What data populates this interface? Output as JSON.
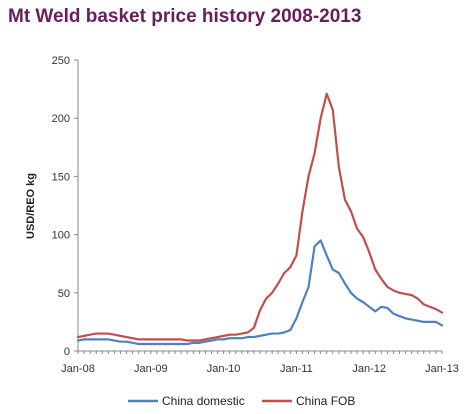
{
  "chart_data": {
    "type": "line",
    "title": "Mt Weld basket price history 2008-2013",
    "ylabel": "USD/REO kg",
    "xlabel": "",
    "ylim": [
      0,
      250
    ],
    "yticks": [
      0,
      50,
      100,
      150,
      200,
      250
    ],
    "xlim": [
      "2008-01",
      "2013-01"
    ],
    "xtick_labels": [
      "Jan-08",
      "Jan-09",
      "Jan-10",
      "Jan-11",
      "Jan-12",
      "Jan-13"
    ],
    "x": [
      "2008-01",
      "2008-02",
      "2008-03",
      "2008-04",
      "2008-05",
      "2008-06",
      "2008-07",
      "2008-08",
      "2008-09",
      "2008-10",
      "2008-11",
      "2008-12",
      "2009-01",
      "2009-02",
      "2009-03",
      "2009-04",
      "2009-05",
      "2009-06",
      "2009-07",
      "2009-08",
      "2009-09",
      "2009-10",
      "2009-11",
      "2009-12",
      "2010-01",
      "2010-02",
      "2010-03",
      "2010-04",
      "2010-05",
      "2010-06",
      "2010-07",
      "2010-08",
      "2010-09",
      "2010-10",
      "2010-11",
      "2010-12",
      "2011-01",
      "2011-02",
      "2011-03",
      "2011-04",
      "2011-05",
      "2011-06",
      "2011-07",
      "2011-08",
      "2011-09",
      "2011-10",
      "2011-11",
      "2011-12",
      "2012-01",
      "2012-02",
      "2012-03",
      "2012-04",
      "2012-05",
      "2012-06",
      "2012-07",
      "2012-08",
      "2012-09",
      "2012-10",
      "2012-11",
      "2012-12",
      "2013-01"
    ],
    "series": [
      {
        "name": "China domestic",
        "color": "#4f81bd",
        "values": [
          9,
          10,
          10,
          10,
          10,
          10,
          9,
          8,
          8,
          7,
          6,
          6,
          6,
          6,
          6,
          6,
          6,
          6,
          6,
          7,
          7,
          8,
          9,
          10,
          10,
          11,
          11,
          11,
          12,
          12,
          13,
          14,
          15,
          15,
          16,
          18,
          28,
          42,
          55,
          90,
          95,
          82,
          70,
          67,
          58,
          50,
          45,
          42,
          38,
          34,
          38,
          37,
          32,
          30,
          28,
          27,
          26,
          25,
          25,
          25,
          22
        ]
      },
      {
        "name": "China FOB",
        "color": "#c0504d",
        "values": [
          12,
          13,
          14,
          15,
          15,
          15,
          14,
          13,
          12,
          11,
          10,
          10,
          10,
          10,
          10,
          10,
          10,
          10,
          9,
          9,
          9,
          10,
          11,
          12,
          13,
          14,
          14,
          15,
          16,
          20,
          35,
          45,
          50,
          58,
          67,
          72,
          82,
          120,
          150,
          170,
          200,
          221,
          207,
          158,
          130,
          120,
          105,
          98,
          85,
          70,
          62,
          55,
          52,
          50,
          49,
          48,
          45,
          40,
          38,
          36,
          33
        ]
      }
    ],
    "legend": {
      "placement": "bottom"
    },
    "grid": false
  }
}
